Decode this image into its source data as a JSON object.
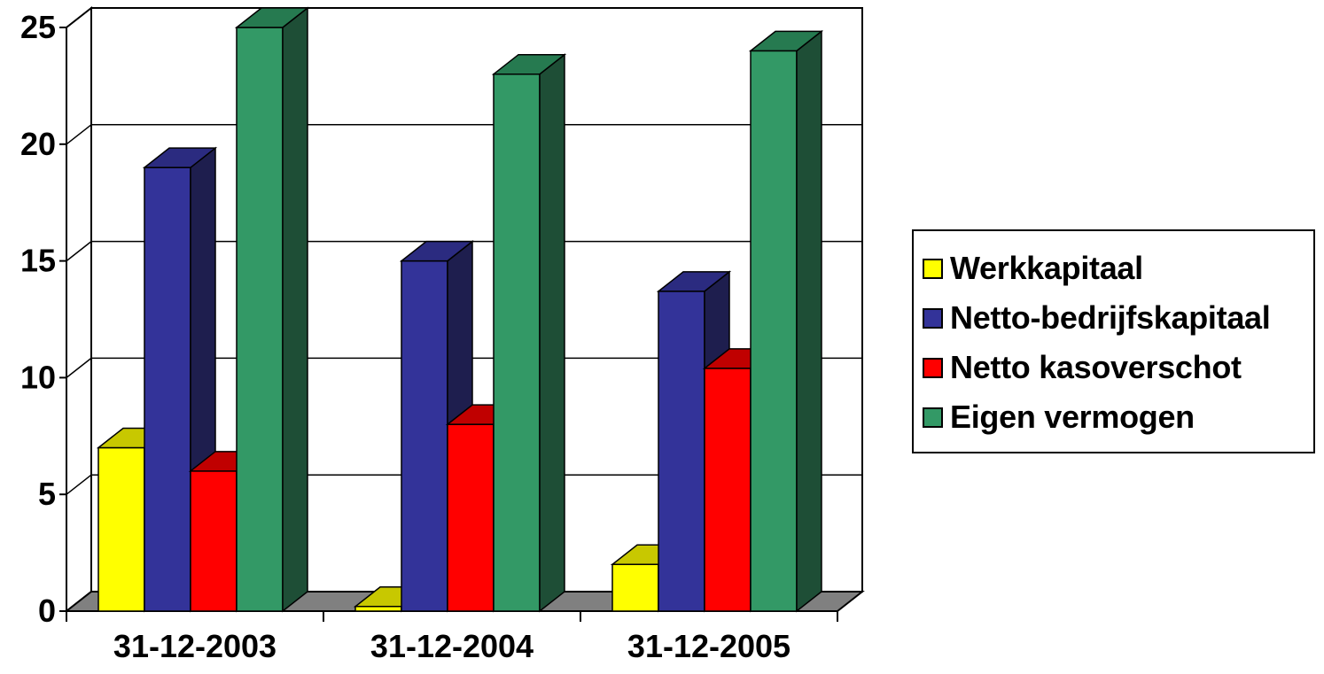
{
  "chart_data": {
    "type": "bar",
    "variant": "3d-clustered-column",
    "categories": [
      "31-12-2003",
      "31-12-2004",
      "31-12-2005"
    ],
    "series": [
      {
        "name": "Werkkapitaal",
        "values": [
          7,
          0.2,
          2
        ],
        "color": "#FFFF00",
        "side": "#8B8B00",
        "top": "#C8C800"
      },
      {
        "name": "Netto-bedrijfskapitaal",
        "values": [
          19,
          15,
          13.7
        ],
        "color": "#333399",
        "side": "#1E1E4E",
        "top": "#2B2B80"
      },
      {
        "name": "Netto kasoverschot",
        "values": [
          6,
          8,
          10.4
        ],
        "color": "#FF0000",
        "side": "#8B0000",
        "top": "#C00000"
      },
      {
        "name": "Eigen vermogen",
        "values": [
          25,
          23,
          24
        ],
        "color": "#339966",
        "side": "#1E4E36",
        "top": "#267A50"
      }
    ],
    "y_ticks": [
      0,
      5,
      10,
      15,
      20,
      25
    ],
    "ylim": [
      0,
      25
    ],
    "grid": true,
    "legend": "right"
  }
}
